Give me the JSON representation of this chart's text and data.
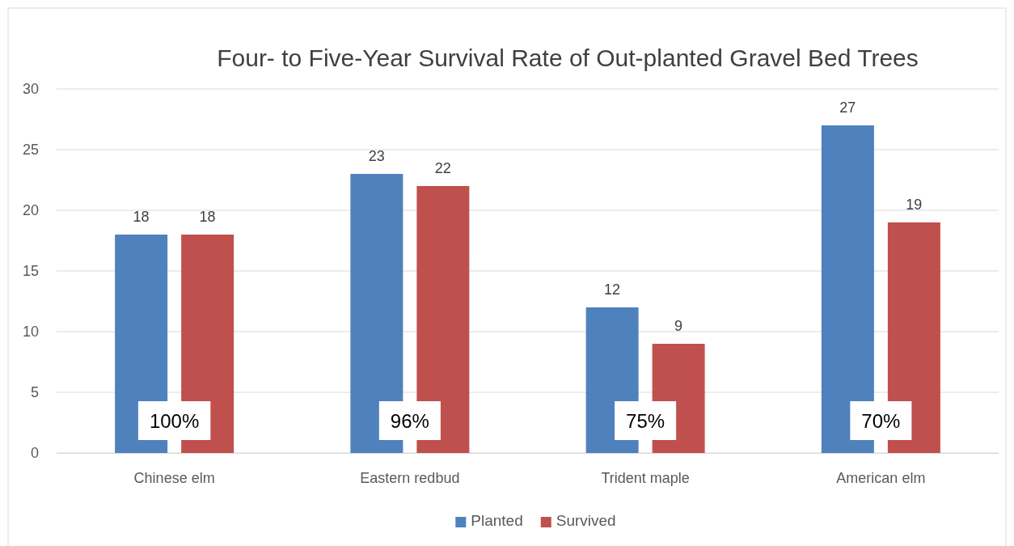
{
  "chart_data": {
    "type": "bar",
    "title": "Four- to Five-Year Survival Rate of Out-planted Gravel Bed Trees",
    "categories": [
      "Chinese elm",
      "Eastern redbud",
      "Trident maple",
      "American elm"
    ],
    "series": [
      {
        "name": "Planted",
        "color": "#4f81bd",
        "values": [
          18,
          23,
          12,
          27
        ]
      },
      {
        "name": "Survived",
        "color": "#c0504d",
        "values": [
          18,
          22,
          9,
          19
        ]
      }
    ],
    "ylim": [
      0,
      30
    ],
    "yticks": [
      0,
      5,
      10,
      15,
      20,
      25,
      30
    ],
    "grid": "y",
    "legend": "bottom",
    "data_labels": true,
    "annotations": [
      "100%",
      "96%",
      "75%",
      "70%"
    ]
  }
}
